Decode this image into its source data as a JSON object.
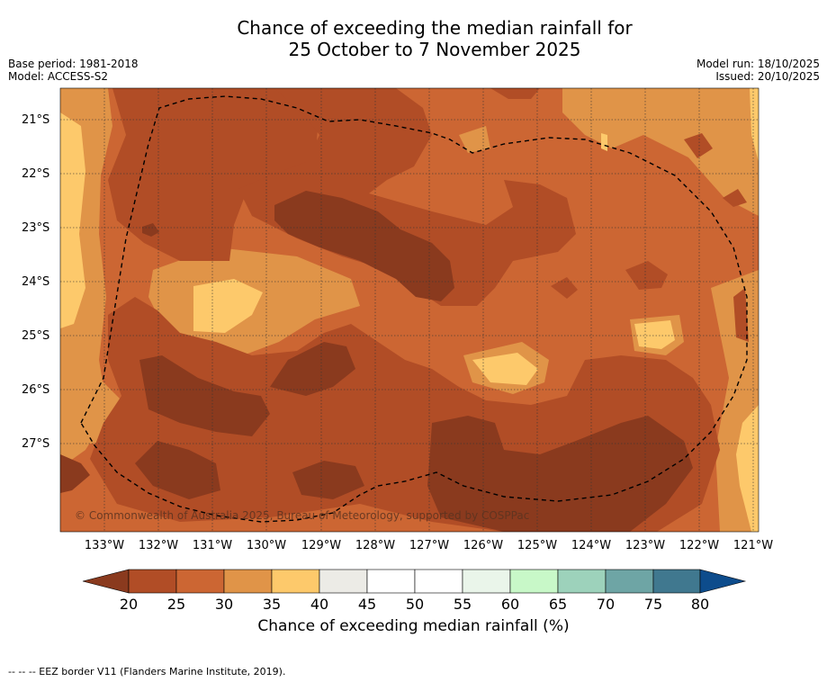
{
  "title": {
    "line1": "Chance of exceeding the median rainfall for",
    "line2": "25 October to 7 November 2025"
  },
  "meta_left": {
    "base_period": "Base period: 1981-2018",
    "model": "Model: ACCESS-S2"
  },
  "meta_right": {
    "model_run": "Model run: 18/10/2025",
    "issued": "Issued: 20/10/2025"
  },
  "map": {
    "latitude_labels": [
      "21°S",
      "22°S",
      "23°S",
      "24°S",
      "25°S",
      "26°S",
      "27°S"
    ],
    "longitude_labels": [
      "133°W",
      "132°W",
      "131°W",
      "130°W",
      "129°W",
      "128°W",
      "127°W",
      "126°W",
      "125°W",
      "124°W",
      "123°W",
      "122°W",
      "121°W"
    ],
    "copyright": "© Commonwealth of Australia 2025, Bureau of Meteorology, supported by COSPPac"
  },
  "colorbar": {
    "title": "Chance of exceeding median rainfall (%)",
    "ticks": [
      "20",
      "25",
      "30",
      "35",
      "40",
      "45",
      "50",
      "55",
      "60",
      "65",
      "70",
      "75",
      "80"
    ],
    "colors": {
      "below_20": "#8a3a1e",
      "c20_25": "#b14d26",
      "c25_30": "#cc6633",
      "c30_35": "#e09448",
      "c35_40": "#fdc96b",
      "c40_45": "#ecebe6",
      "c45_55": "#ffffff",
      "c55_60": "#eaf5ea",
      "c60_65": "#c8f8c8",
      "c65_70": "#9dd2bb",
      "c70_75": "#6ea5a5",
      "c75_80": "#40788f",
      "above_80": "#0d4c8c"
    }
  },
  "footnote": "--  --  -- EEZ border V11 (Flanders Marine Institute, 2019)."
}
